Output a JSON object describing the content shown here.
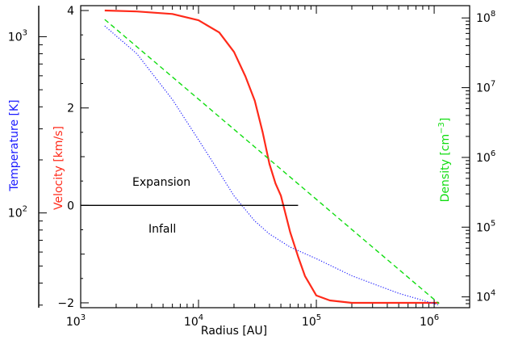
{
  "chart_data": {
    "type": "line",
    "xlabel": "Radius [AU]",
    "x_scale": "log",
    "xlim": [
      1000,
      2000000
    ],
    "x_ticks": [
      {
        "value": 1000,
        "base": "10",
        "exp": "3"
      },
      {
        "value": 10000,
        "base": "10",
        "exp": "4"
      },
      {
        "value": 100000,
        "base": "10",
        "exp": "5"
      },
      {
        "value": 1000000,
        "base": "10",
        "exp": "6"
      }
    ],
    "axes": {
      "temperature": {
        "label_prefix": "Temperature ",
        "label_unit": "[K]",
        "scale": "log",
        "range": [
          29,
          1500
        ],
        "ticks": [
          {
            "value": 1000,
            "base": "10",
            "exp": "3"
          },
          {
            "value": 100,
            "base": "10",
            "exp": "2"
          }
        ]
      },
      "velocity": {
        "label_prefix": "Velocity ",
        "label_unit": "[km/s]",
        "scale": "linear",
        "range": [
          -2.1,
          4.1
        ],
        "ticks": [
          {
            "value": 4,
            "label": "4"
          },
          {
            "value": 2,
            "label": "2"
          },
          {
            "value": 0,
            "label": "0"
          },
          {
            "value": -2,
            "label": "−2"
          }
        ]
      },
      "density": {
        "label_prefix": "Density ",
        "label_unit_base": "[cm",
        "label_unit_exp": "−3",
        "label_unit_close": "]",
        "scale": "log",
        "range": [
          7000,
          150000000
        ],
        "ticks": [
          {
            "value": 100000000,
            "base": "10",
            "exp": "8"
          },
          {
            "value": 10000000,
            "base": "10",
            "exp": "7"
          },
          {
            "value": 1000000,
            "base": "10",
            "exp": "6"
          },
          {
            "value": 100000,
            "base": "10",
            "exp": "5"
          },
          {
            "value": 10000,
            "base": "10",
            "exp": "4"
          }
        ]
      }
    },
    "series": [
      {
        "key": "velocity",
        "axis": "velocity",
        "color": "#ff2a1a",
        "style": "solid",
        "x": [
          1600,
          3000,
          6000,
          10000,
          15000,
          20000,
          25000,
          30000,
          35000,
          40000,
          45000,
          50000,
          60000,
          70000,
          80000,
          100000,
          130000,
          200000,
          500000,
          1100000
        ],
        "y": [
          4.0,
          3.98,
          3.93,
          3.8,
          3.55,
          3.15,
          2.65,
          2.15,
          1.5,
          0.85,
          0.45,
          0.2,
          -0.55,
          -1.05,
          -1.45,
          -1.85,
          -1.95,
          -2.0,
          -2.0,
          -2.0
        ]
      },
      {
        "key": "temperature",
        "axis": "temperature",
        "color": "#1a1aff",
        "style": "dotted",
        "x": [
          1600,
          3000,
          6000,
          10000,
          15000,
          20000,
          30000,
          40000,
          60000,
          100000,
          200000,
          500000,
          1100000
        ],
        "y": [
          1150,
          800,
          440,
          260,
          170,
          125,
          90,
          76,
          64,
          55,
          44,
          35,
          30
        ]
      },
      {
        "key": "density",
        "axis": "density",
        "color": "#11dd11",
        "style": "dashed",
        "x": [
          1600,
          1100000
        ],
        "y": [
          95000000,
          8000
        ]
      },
      {
        "key": "zero",
        "axis": "velocity",
        "color": "#000000",
        "style": "solid",
        "x": [
          1000,
          70000
        ],
        "y": [
          0,
          0
        ]
      }
    ],
    "annotations": [
      {
        "key": "expansion",
        "text": "Expansion"
      },
      {
        "key": "infall",
        "text": "Infall"
      }
    ]
  }
}
